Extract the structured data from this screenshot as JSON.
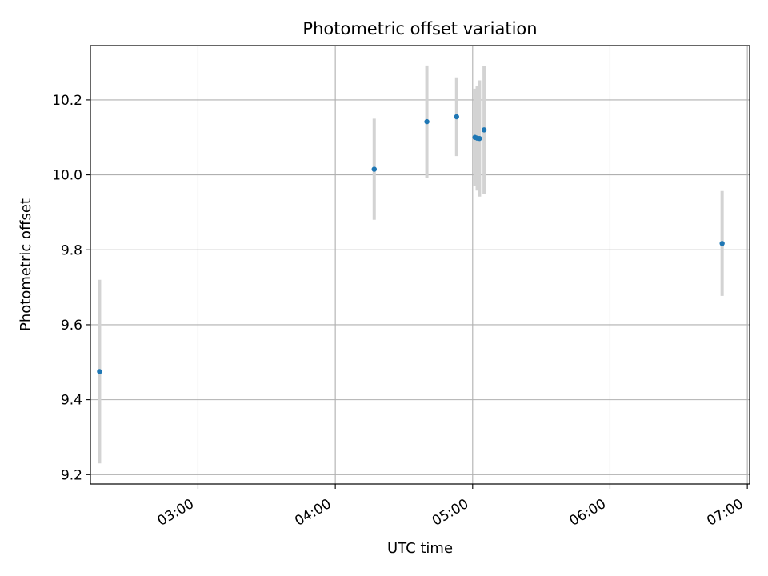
{
  "chart_data": {
    "type": "scatter",
    "title": "Photometric offset variation",
    "xlabel": "UTC time",
    "ylabel": "Photometric offset",
    "x_axis_type": "time",
    "xlim": [
      "02:13",
      "07:01"
    ],
    "ylim": [
      9.175,
      10.345
    ],
    "xticks": [
      "03:00",
      "04:00",
      "05:00",
      "06:00",
      "07:00"
    ],
    "yticks": [
      "9.2",
      "9.4",
      "9.6",
      "9.8",
      "10.0",
      "10.2"
    ],
    "grid": true,
    "series": [
      {
        "marker_color": "#1f77b4",
        "errorbar_color": "#d3d3d3",
        "points": [
          {
            "x": "02:17",
            "y": 9.475,
            "err": 0.245
          },
          {
            "x": "04:17",
            "y": 10.015,
            "err": 0.135
          },
          {
            "x": "04:40",
            "y": 10.142,
            "err": 0.15
          },
          {
            "x": "04:53",
            "y": 10.155,
            "err": 0.105
          },
          {
            "x": "05:01",
            "y": 10.1,
            "err": 0.13
          },
          {
            "x": "05:02",
            "y": 10.098,
            "err": 0.14
          },
          {
            "x": "05:03",
            "y": 10.097,
            "err": 0.155
          },
          {
            "x": "05:05",
            "y": 10.12,
            "err": 0.17
          },
          {
            "x": "06:49",
            "y": 9.817,
            "err": 0.14
          }
        ]
      }
    ]
  }
}
